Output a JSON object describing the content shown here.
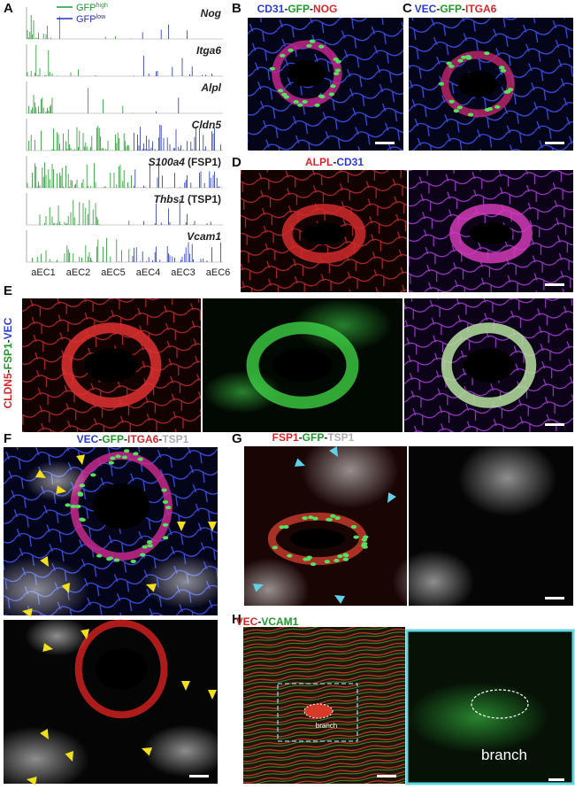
{
  "figure": {
    "panels": [
      {
        "letter": "A"
      },
      {
        "letter": "B",
        "title": [
          {
            "text": "CD31",
            "color": "#2a3bd6"
          },
          {
            "text": "-",
            "color": "#222222"
          },
          {
            "text": "GFP",
            "color": "#1f9a2a"
          },
          {
            "text": "-",
            "color": "#222222"
          },
          {
            "text": "NOG",
            "color": "#d9262b"
          }
        ]
      },
      {
        "letter": "C",
        "title": [
          {
            "text": "VEC",
            "color": "#2a3bd6"
          },
          {
            "text": "-",
            "color": "#222222"
          },
          {
            "text": "GFP",
            "color": "#1f9a2a"
          },
          {
            "text": "-",
            "color": "#222222"
          },
          {
            "text": "ITGA6",
            "color": "#d9262b"
          }
        ]
      },
      {
        "letter": "D",
        "title": [
          {
            "text": "ALPL",
            "color": "#d9262b"
          },
          {
            "text": "-",
            "color": "#222222"
          },
          {
            "text": "CD31",
            "color": "#2a3bd6"
          }
        ]
      },
      {
        "letter": "E",
        "title": [
          {
            "text": "CLDN5",
            "color": "#d9262b"
          },
          {
            "text": "-",
            "color": "#222222"
          },
          {
            "text": "FSP1",
            "color": "#1f9a2a"
          },
          {
            "text": "-",
            "color": "#222222"
          },
          {
            "text": "VEC",
            "color": "#2a3bd6"
          }
        ]
      },
      {
        "letter": "F",
        "title": [
          {
            "text": "VEC",
            "color": "#2a3bd6"
          },
          {
            "text": "-",
            "color": "#222222"
          },
          {
            "text": "GFP",
            "color": "#1f9a2a"
          },
          {
            "text": "-",
            "color": "#222222"
          },
          {
            "text": "ITGA6",
            "color": "#d9262b"
          },
          {
            "text": "-",
            "color": "#222222"
          },
          {
            "text": "TSP1",
            "color": "#aaaaaa"
          }
        ]
      },
      {
        "letter": "G",
        "title": [
          {
            "text": "FSP1",
            "color": "#d9262b"
          },
          {
            "text": "-",
            "color": "#222222"
          },
          {
            "text": "GFP",
            "color": "#1f9a2a"
          },
          {
            "text": "-",
            "color": "#222222"
          },
          {
            "text": "TSP1",
            "color": "#aaaaaa"
          }
        ]
      },
      {
        "letter": "H",
        "title": [
          {
            "text": "VEC",
            "color": "#d9262b"
          },
          {
            "text": "-",
            "color": "#222222"
          },
          {
            "text": "VCAM1",
            "color": "#1f9a2a"
          }
        ],
        "annotations": [
          "branch",
          "branch"
        ]
      }
    ],
    "legend": [
      {
        "text": "GFP",
        "sup": "high",
        "color": "#1f9a2a"
      },
      {
        "text": "GFP",
        "sup": "low",
        "color": "#2233bb"
      }
    ],
    "genes": [
      {
        "name": "Nog"
      },
      {
        "name": "Itga6"
      },
      {
        "name": "Alpl"
      },
      {
        "name": "Cldn5"
      },
      {
        "name": "S100a4",
        "extra": "(FSP1)"
      },
      {
        "name": "Thbs1",
        "extra": "(TSP1)"
      },
      {
        "name": "Vcam1"
      }
    ],
    "clusters": [
      "aEC1",
      "aEC2",
      "aEC5",
      "aEC4",
      "aEC3",
      "aEC6"
    ]
  }
}
